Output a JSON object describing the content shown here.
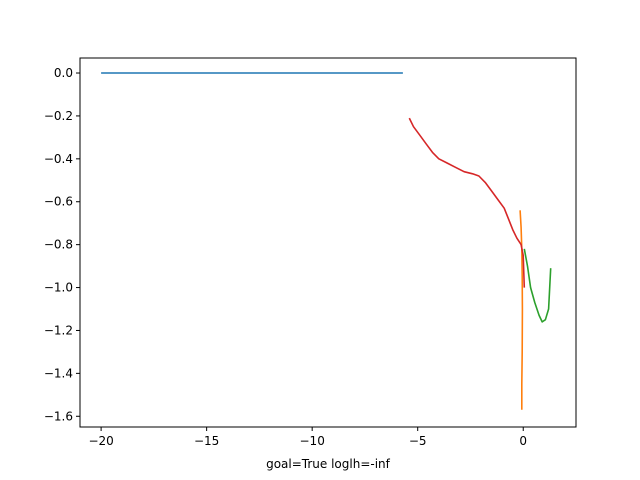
{
  "chart_data": {
    "type": "line",
    "title": "",
    "xlabel": "goal=True loglh=-inf",
    "ylabel": "",
    "xlim": [
      -21.0,
      2.5
    ],
    "ylim": [
      -1.65,
      0.07
    ],
    "x_ticks": [
      -20,
      -15,
      -10,
      -5,
      0
    ],
    "x_tick_labels": [
      "−20",
      "−15",
      "−10",
      "−5",
      "0"
    ],
    "y_ticks": [
      0.0,
      -0.2,
      -0.4,
      -0.6,
      -0.8,
      -1.0,
      -1.2,
      -1.4,
      -1.6
    ],
    "y_tick_labels": [
      "0.0",
      "−0.2",
      "−0.4",
      "−0.6",
      "−0.8",
      "−1.0",
      "−1.2",
      "−1.4",
      "−1.6"
    ],
    "grid": false,
    "legend": "none",
    "series": [
      {
        "color": "#1f77b4",
        "points": [
          [
            -20.0,
            0.0
          ],
          [
            -5.7,
            0.0
          ]
        ]
      },
      {
        "color": "#ff7f0e",
        "points": [
          [
            -0.15,
            -0.64
          ],
          [
            -0.1,
            -0.72
          ],
          [
            -0.07,
            -0.82
          ],
          [
            -0.05,
            -0.95
          ],
          [
            -0.04,
            -1.1
          ],
          [
            -0.05,
            -1.3
          ],
          [
            -0.07,
            -1.45
          ],
          [
            -0.07,
            -1.57
          ]
        ]
      },
      {
        "color": "#2ca02c",
        "points": [
          [
            0.05,
            -0.82
          ],
          [
            0.2,
            -0.9
          ],
          [
            0.35,
            -1.0
          ],
          [
            0.55,
            -1.07
          ],
          [
            0.75,
            -1.13
          ],
          [
            0.9,
            -1.16
          ],
          [
            1.05,
            -1.15
          ],
          [
            1.2,
            -1.1
          ],
          [
            1.3,
            -0.91
          ]
        ]
      },
      {
        "color": "#d62728",
        "points": [
          [
            -5.4,
            -0.21
          ],
          [
            -5.2,
            -0.25
          ],
          [
            -4.9,
            -0.29
          ],
          [
            -4.6,
            -0.33
          ],
          [
            -4.3,
            -0.37
          ],
          [
            -4.0,
            -0.4
          ],
          [
            -3.6,
            -0.42
          ],
          [
            -3.2,
            -0.44
          ],
          [
            -2.8,
            -0.46
          ],
          [
            -2.4,
            -0.47
          ],
          [
            -2.1,
            -0.48
          ],
          [
            -1.8,
            -0.51
          ],
          [
            -1.5,
            -0.55
          ],
          [
            -1.2,
            -0.59
          ],
          [
            -0.9,
            -0.63
          ],
          [
            -0.7,
            -0.68
          ],
          [
            -0.5,
            -0.73
          ],
          [
            -0.3,
            -0.77
          ],
          [
            -0.1,
            -0.8
          ],
          [
            0.0,
            -0.85
          ],
          [
            0.05,
            -1.0
          ]
        ]
      }
    ]
  }
}
